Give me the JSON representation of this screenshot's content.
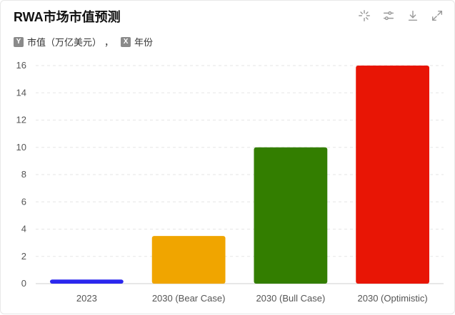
{
  "header": {
    "title": "RWA市场市值预测",
    "y_badge": "Y",
    "y_label": "市值（万亿美元）",
    "separator": "，",
    "x_badge": "X",
    "x_label": "年份"
  },
  "toolbar": {
    "icons": [
      "selection-icon",
      "filter-sliders-icon",
      "download-icon",
      "expand-icon"
    ]
  },
  "chart_data": {
    "type": "bar",
    "title": "RWA市场市值预测",
    "ylabel": "市值（万亿美元）",
    "xlabel": "年份",
    "categories": [
      "2023",
      "2030 (Bear Case)",
      "2030 (Bull Case)",
      "2030 (Optimistic)"
    ],
    "values": [
      0.3,
      3.5,
      10,
      16
    ],
    "colors": [
      "#2b28ee",
      "#f0a500",
      "#337e00",
      "#e81505"
    ],
    "ylim": [
      0,
      16
    ],
    "yticks": [
      0,
      2,
      4,
      6,
      8,
      10,
      12,
      14,
      16
    ],
    "grid": true,
    "legend": "none"
  }
}
